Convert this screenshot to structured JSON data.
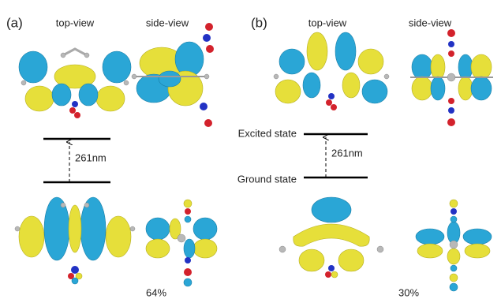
{
  "panels": [
    {
      "label": "(a)",
      "views": [
        "top-view",
        "side-view"
      ],
      "transition": "261nm",
      "percent": "64%"
    },
    {
      "label": "(b)",
      "views": [
        "top-view",
        "side-view"
      ],
      "transition": "261nm",
      "percent": "30%"
    }
  ],
  "levels": {
    "excited": "Excited state",
    "ground": "Ground state"
  }
}
